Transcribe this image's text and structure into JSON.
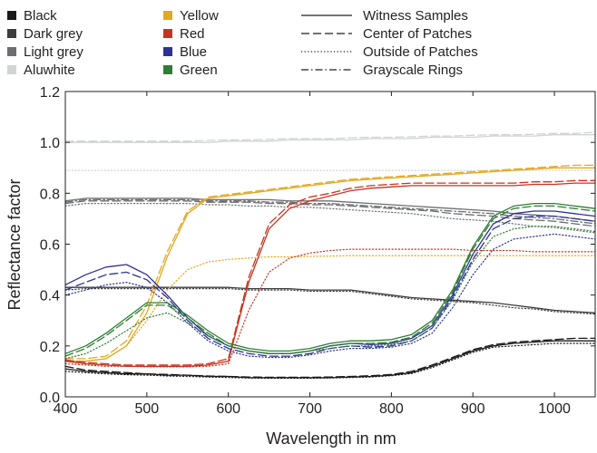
{
  "chart_data": {
    "type": "line",
    "xlabel": "Wavelength in nm",
    "ylabel": "Reflectance factor",
    "xlim": [
      400,
      1050
    ],
    "ylim": [
      0,
      1.2
    ],
    "x_ticks": [
      400,
      500,
      600,
      700,
      800,
      900,
      1000
    ],
    "y_ticks": [
      0.0,
      0.2,
      0.4,
      0.6,
      0.8,
      1.0,
      1.2
    ],
    "y_tick_labels": [
      "0.0",
      "0.2",
      "0.4",
      "0.6",
      "0.8",
      "1.0",
      "1.2"
    ],
    "grid": false,
    "legend_position": "top",
    "x": [
      400,
      425,
      450,
      475,
      500,
      525,
      550,
      575,
      600,
      625,
      650,
      675,
      700,
      725,
      750,
      775,
      800,
      825,
      850,
      875,
      900,
      925,
      950,
      975,
      1000,
      1025,
      1050
    ],
    "line_styles": [
      {
        "name": "Witness Samples",
        "style": "solid"
      },
      {
        "name": "Center of Patches",
        "style": "dashed"
      },
      {
        "name": "Outside of Patches",
        "style": "dotted"
      },
      {
        "name": "Grayscale Rings",
        "style": "dashdot"
      }
    ],
    "series": [
      {
        "name": "Black",
        "color": "#1a1a1a",
        "variants": [
          {
            "style": "solid",
            "values": [
              0.11,
              0.1,
              0.095,
              0.09,
              0.09,
              0.085,
              0.085,
              0.08,
              0.08,
              0.075,
              0.075,
              0.075,
              0.075,
              0.075,
              0.078,
              0.08,
              0.085,
              0.095,
              0.12,
              0.15,
              0.18,
              0.2,
              0.21,
              0.215,
              0.22,
              0.22,
              0.22
            ]
          },
          {
            "style": "dashed",
            "values": [
              0.12,
              0.105,
              0.1,
              0.095,
              0.09,
              0.088,
              0.085,
              0.082,
              0.08,
              0.078,
              0.077,
              0.077,
              0.077,
              0.078,
              0.08,
              0.083,
              0.088,
              0.1,
              0.125,
              0.155,
              0.185,
              0.205,
              0.215,
              0.22,
              0.225,
              0.23,
              0.23
            ]
          },
          {
            "style": "dotted",
            "values": [
              0.1,
              0.095,
              0.09,
              0.087,
              0.085,
              0.082,
              0.08,
              0.078,
              0.076,
              0.074,
              0.073,
              0.073,
              0.073,
              0.074,
              0.076,
              0.078,
              0.083,
              0.092,
              0.115,
              0.145,
              0.175,
              0.195,
              0.2,
              0.205,
              0.21,
              0.21,
              0.21
            ]
          }
        ]
      },
      {
        "name": "Dark grey",
        "color": "#3c3c3c",
        "variants": [
          {
            "style": "solid",
            "values": [
              0.43,
              0.43,
              0.43,
              0.43,
              0.43,
              0.43,
              0.43,
              0.43,
              0.43,
              0.425,
              0.425,
              0.425,
              0.42,
              0.42,
              0.42,
              0.41,
              0.4,
              0.39,
              0.385,
              0.38,
              0.375,
              0.37,
              0.36,
              0.35,
              0.34,
              0.335,
              0.33
            ]
          },
          {
            "style": "dotted",
            "values": [
              0.42,
              0.425,
              0.425,
              0.425,
              0.425,
              0.425,
              0.425,
              0.425,
              0.425,
              0.42,
              0.42,
              0.42,
              0.415,
              0.415,
              0.415,
              0.405,
              0.395,
              0.385,
              0.38,
              0.375,
              0.37,
              0.36,
              0.35,
              0.345,
              0.335,
              0.33,
              0.325
            ]
          }
        ]
      },
      {
        "name": "Light grey",
        "color": "#6d6e71",
        "variants": [
          {
            "style": "solid",
            "values": [
              0.77,
              0.78,
              0.78,
              0.78,
              0.78,
              0.78,
              0.78,
              0.775,
              0.775,
              0.775,
              0.775,
              0.77,
              0.77,
              0.77,
              0.765,
              0.76,
              0.755,
              0.75,
              0.745,
              0.74,
              0.735,
              0.73,
              0.72,
              0.715,
              0.71,
              0.7,
              0.69
            ]
          },
          {
            "style": "dashed",
            "values": [
              0.76,
              0.77,
              0.77,
              0.77,
              0.77,
              0.77,
              0.77,
              0.765,
              0.765,
              0.765,
              0.76,
              0.76,
              0.755,
              0.755,
              0.75,
              0.745,
              0.74,
              0.735,
              0.73,
              0.72,
              0.715,
              0.71,
              0.7,
              0.695,
              0.69,
              0.68,
              0.67
            ]
          },
          {
            "style": "dotted",
            "values": [
              0.75,
              0.76,
              0.76,
              0.76,
              0.76,
              0.76,
              0.76,
              0.755,
              0.755,
              0.75,
              0.75,
              0.745,
              0.745,
              0.74,
              0.735,
              0.73,
              0.725,
              0.72,
              0.71,
              0.7,
              0.695,
              0.69,
              0.68,
              0.67,
              0.665,
              0.655,
              0.645
            ]
          },
          {
            "style": "dashdot",
            "values": [
              0.765,
              0.775,
              0.775,
              0.775,
              0.775,
              0.775,
              0.775,
              0.77,
              0.77,
              0.77,
              0.765,
              0.765,
              0.76,
              0.76,
              0.755,
              0.75,
              0.745,
              0.74,
              0.735,
              0.73,
              0.725,
              0.72,
              0.71,
              0.705,
              0.7,
              0.69,
              0.68
            ]
          }
        ]
      },
      {
        "name": "Aluwhite",
        "color": "#d1d3d4",
        "variants": [
          {
            "style": "solid",
            "values": [
              1.0,
              1.0,
              1.0,
              1.0,
              1.0,
              1.0,
              1.0,
              1.0,
              1.005,
              1.005,
              1.005,
              1.01,
              1.01,
              1.01,
              1.01,
              1.015,
              1.015,
              1.015,
              1.02,
              1.02,
              1.02,
              1.025,
              1.025,
              1.025,
              1.03,
              1.03,
              1.03
            ]
          },
          {
            "style": "dashed",
            "values": [
              1.005,
              1.005,
              1.005,
              1.005,
              1.005,
              1.005,
              1.005,
              1.008,
              1.01,
              1.01,
              1.012,
              1.015,
              1.015,
              1.015,
              1.018,
              1.02,
              1.02,
              1.022,
              1.025,
              1.025,
              1.028,
              1.03,
              1.03,
              1.032,
              1.035,
              1.035,
              1.04
            ]
          },
          {
            "style": "dotted",
            "values": [
              0.89,
              0.89,
              0.89,
              0.89,
              0.89,
              0.89,
              0.89,
              0.89,
              0.89,
              0.89,
              0.89,
              0.89,
              0.89,
              0.89,
              0.89,
              0.89,
              0.89,
              0.89,
              0.89,
              0.89,
              0.89,
              0.89,
              0.89,
              0.89,
              0.89,
              0.89,
              0.89
            ]
          }
        ]
      },
      {
        "name": "Yellow",
        "color": "#e2a81f",
        "variants": [
          {
            "style": "solid",
            "values": [
              0.14,
              0.14,
              0.15,
              0.2,
              0.33,
              0.55,
              0.72,
              0.78,
              0.79,
              0.8,
              0.81,
              0.82,
              0.83,
              0.84,
              0.85,
              0.855,
              0.86,
              0.865,
              0.87,
              0.875,
              0.88,
              0.885,
              0.89,
              0.895,
              0.9,
              0.9,
              0.9
            ]
          },
          {
            "style": "dashed",
            "values": [
              0.15,
              0.15,
              0.16,
              0.22,
              0.36,
              0.57,
              0.73,
              0.785,
              0.795,
              0.805,
              0.815,
              0.825,
              0.835,
              0.845,
              0.855,
              0.86,
              0.865,
              0.87,
              0.875,
              0.88,
              0.885,
              0.89,
              0.895,
              0.9,
              0.905,
              0.91,
              0.91
            ]
          },
          {
            "style": "dotted",
            "values": [
              0.14,
              0.14,
              0.15,
              0.2,
              0.3,
              0.42,
              0.5,
              0.53,
              0.54,
              0.545,
              0.55,
              0.55,
              0.552,
              0.553,
              0.555,
              0.555,
              0.555,
              0.555,
              0.555,
              0.555,
              0.555,
              0.555,
              0.555,
              0.555,
              0.555,
              0.555,
              0.555
            ]
          }
        ]
      },
      {
        "name": "Red",
        "color": "#c8331f",
        "variants": [
          {
            "style": "solid",
            "values": [
              0.14,
              0.13,
              0.125,
              0.12,
              0.12,
              0.12,
              0.12,
              0.125,
              0.14,
              0.45,
              0.66,
              0.74,
              0.77,
              0.79,
              0.81,
              0.82,
              0.825,
              0.83,
              0.83,
              0.83,
              0.83,
              0.83,
              0.83,
              0.835,
              0.835,
              0.84,
              0.84
            ]
          },
          {
            "style": "dashed",
            "values": [
              0.145,
              0.135,
              0.13,
              0.125,
              0.125,
              0.125,
              0.125,
              0.13,
              0.15,
              0.47,
              0.68,
              0.755,
              0.785,
              0.8,
              0.82,
              0.83,
              0.835,
              0.84,
              0.84,
              0.84,
              0.84,
              0.84,
              0.84,
              0.845,
              0.845,
              0.85,
              0.85
            ]
          },
          {
            "style": "dotted",
            "values": [
              0.13,
              0.125,
              0.12,
              0.12,
              0.118,
              0.118,
              0.118,
              0.12,
              0.13,
              0.34,
              0.49,
              0.545,
              0.565,
              0.575,
              0.58,
              0.58,
              0.58,
              0.58,
              0.58,
              0.58,
              0.575,
              0.575,
              0.575,
              0.57,
              0.57,
              0.57,
              0.57
            ]
          }
        ]
      },
      {
        "name": "Blue",
        "color": "#2e3192",
        "variants": [
          {
            "style": "solid",
            "values": [
              0.44,
              0.48,
              0.51,
              0.52,
              0.48,
              0.4,
              0.31,
              0.24,
              0.2,
              0.18,
              0.17,
              0.17,
              0.18,
              0.2,
              0.21,
              0.205,
              0.21,
              0.23,
              0.28,
              0.4,
              0.56,
              0.68,
              0.72,
              0.73,
              0.73,
              0.72,
              0.71
            ]
          },
          {
            "style": "dashed",
            "values": [
              0.42,
              0.45,
              0.48,
              0.49,
              0.46,
              0.39,
              0.3,
              0.23,
              0.19,
              0.17,
              0.16,
              0.16,
              0.17,
              0.19,
              0.2,
              0.195,
              0.2,
              0.22,
              0.27,
              0.39,
              0.54,
              0.66,
              0.7,
              0.71,
              0.71,
              0.7,
              0.69
            ]
          },
          {
            "style": "dotted",
            "values": [
              0.4,
              0.42,
              0.44,
              0.45,
              0.43,
              0.37,
              0.29,
              0.22,
              0.18,
              0.16,
              0.155,
              0.155,
              0.165,
              0.18,
              0.19,
              0.19,
              0.195,
              0.21,
              0.25,
              0.35,
              0.48,
              0.58,
              0.62,
              0.63,
              0.64,
              0.63,
              0.62
            ]
          }
        ]
      },
      {
        "name": "Green",
        "color": "#2e7d32",
        "variants": [
          {
            "style": "solid",
            "values": [
              0.17,
              0.2,
              0.25,
              0.31,
              0.37,
              0.37,
              0.32,
              0.26,
              0.21,
              0.19,
              0.18,
              0.18,
              0.19,
              0.21,
              0.22,
              0.22,
              0.225,
              0.245,
              0.3,
              0.42,
              0.59,
              0.71,
              0.75,
              0.76,
              0.76,
              0.75,
              0.74
            ]
          },
          {
            "style": "dashed",
            "values": [
              0.16,
              0.19,
              0.24,
              0.3,
              0.36,
              0.36,
              0.31,
              0.25,
              0.2,
              0.18,
              0.17,
              0.17,
              0.18,
              0.2,
              0.21,
              0.21,
              0.215,
              0.235,
              0.29,
              0.41,
              0.58,
              0.7,
              0.74,
              0.75,
              0.75,
              0.74,
              0.73
            ]
          },
          {
            "style": "dotted",
            "values": [
              0.15,
              0.17,
              0.21,
              0.26,
              0.31,
              0.33,
              0.29,
              0.24,
              0.2,
              0.18,
              0.17,
              0.17,
              0.18,
              0.19,
              0.2,
              0.2,
              0.205,
              0.22,
              0.27,
              0.38,
              0.53,
              0.63,
              0.66,
              0.67,
              0.67,
              0.66,
              0.65
            ]
          }
        ]
      }
    ],
    "legend": {
      "colors": [
        {
          "label": "Black",
          "color": "#1a1a1a"
        },
        {
          "label": "Dark grey",
          "color": "#3c3c3c"
        },
        {
          "label": "Light grey",
          "color": "#6d6e71"
        },
        {
          "label": "Aluwhite",
          "color": "#d1d3d4"
        },
        {
          "label": "Yellow",
          "color": "#e2a81f"
        },
        {
          "label": "Red",
          "color": "#c8331f"
        },
        {
          "label": "Blue",
          "color": "#2e3192"
        },
        {
          "label": "Green",
          "color": "#2e7d32"
        }
      ],
      "styles": [
        {
          "label": "Witness Samples",
          "style": "solid"
        },
        {
          "label": "Center of Patches",
          "style": "dashed"
        },
        {
          "label": "Outside of Patches",
          "style": "dotted"
        },
        {
          "label": "Grayscale Rings",
          "style": "dashdot"
        }
      ]
    }
  }
}
